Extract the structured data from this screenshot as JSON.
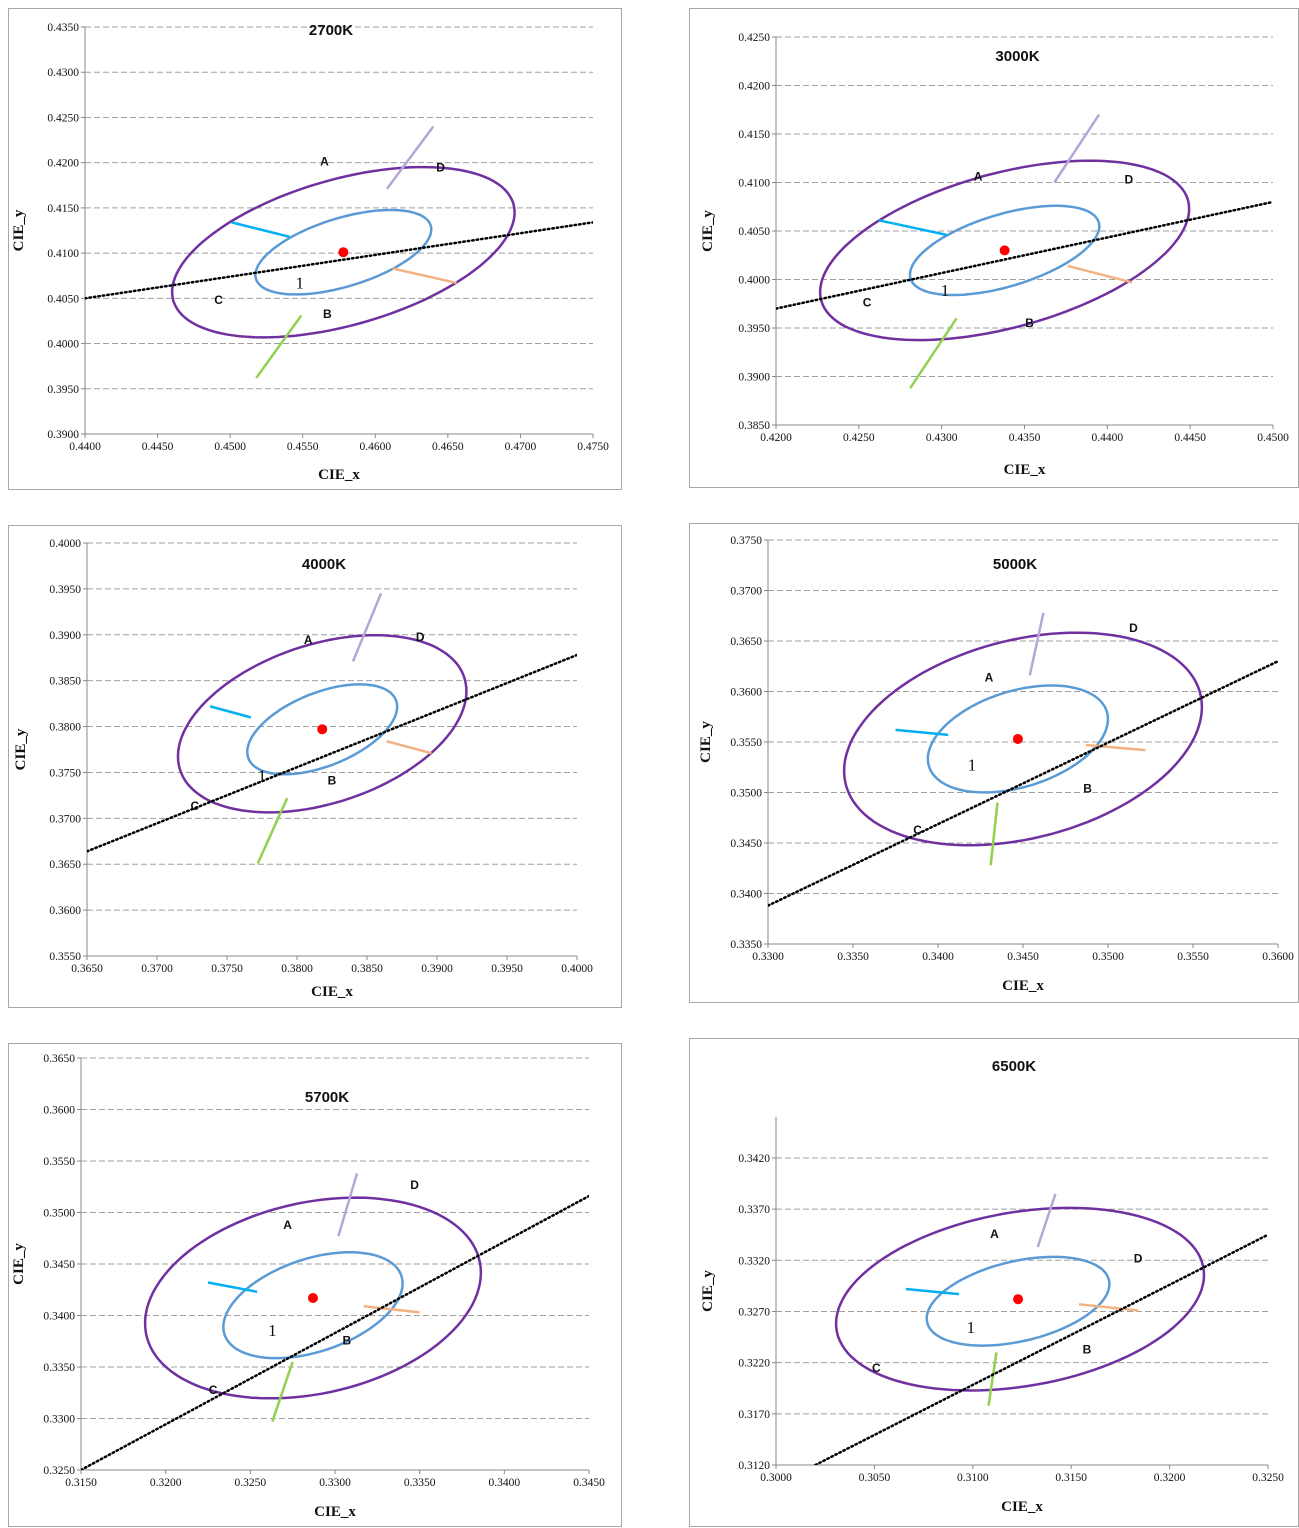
{
  "chart_data": [
    {
      "type": "scatter",
      "title": "2700K",
      "xlabel": "CIE_x",
      "ylabel": "CIE_y",
      "xlim": [
        0.44,
        0.475
      ],
      "ylim": [
        0.39,
        0.435
      ],
      "xticks": [
        "0.4400",
        "0.4450",
        "0.4500",
        "0.4550",
        "0.4600",
        "0.4650",
        "0.4700",
        "0.4750"
      ],
      "yticks": [
        "0.3900",
        "0.3950",
        "0.4000",
        "0.4050",
        "0.4100",
        "0.4150",
        "0.4200",
        "0.4250",
        "0.4300",
        "0.4350"
      ],
      "grid": "horizontal-dashed",
      "center": [
        0.4578,
        0.4101
      ],
      "planckian_line": [
        [
          0.44,
          0.405
        ],
        [
          0.475,
          0.4134
        ]
      ],
      "outer_ellipse": {
        "cx": 0.4578,
        "cy": 0.4101,
        "rx": 0.0131,
        "ry": 0.0075,
        "rotation_deg": 32
      },
      "inner_ellipse": {
        "cx": 0.4578,
        "cy": 0.4101,
        "rx": 0.0068,
        "ry": 0.0035,
        "rotation_deg": 32
      },
      "dividers": [
        {
          "color": "#b4a7d6",
          "from": [
            0.4608,
            0.4171
          ],
          "to": [
            0.464,
            0.424
          ]
        },
        {
          "color": "#f4b183",
          "from": [
            0.4612,
            0.4083
          ],
          "to": [
            0.4656,
            0.4067
          ]
        },
        {
          "color": "#92d050",
          "from": [
            0.4549,
            0.4031
          ],
          "to": [
            0.4518,
            0.3962
          ]
        },
        {
          "color": "#00b0f0",
          "from": [
            0.4541,
            0.4118
          ],
          "to": [
            0.4501,
            0.4134
          ]
        }
      ],
      "region_labels": [
        {
          "text": "A",
          "x": 0.4565,
          "y": 0.4197
        },
        {
          "text": "D",
          "x": 0.4645,
          "y": 0.419
        },
        {
          "text": "C",
          "x": 0.4492,
          "y": 0.4044
        },
        {
          "text": "B",
          "x": 0.4567,
          "y": 0.4028
        },
        {
          "text": "1",
          "x": 0.4548,
          "y": 0.4061,
          "style": "inner"
        }
      ]
    },
    {
      "type": "scatter",
      "title": "3000K",
      "xlabel": "CIE_x",
      "ylabel": "CIE_y",
      "xlim": [
        0.42,
        0.45
      ],
      "ylim": [
        0.385,
        0.425
      ],
      "xticks": [
        "0.4200",
        "0.4250",
        "0.4300",
        "0.4350",
        "0.4400",
        "0.4450",
        "0.4500"
      ],
      "yticks": [
        "0.3850",
        "0.3900",
        "0.3950",
        "0.4000",
        "0.4050",
        "0.4100",
        "0.4150",
        "0.4200",
        "0.4250"
      ],
      "grid": "horizontal-dashed",
      "center": [
        0.4338,
        0.403
      ],
      "planckian_line": [
        [
          0.42,
          0.397
        ],
        [
          0.45,
          0.408
        ]
      ],
      "outer_ellipse": {
        "cx": 0.4338,
        "cy": 0.403,
        "rx": 0.0125,
        "ry": 0.0073,
        "rotation_deg": 34
      },
      "inner_ellipse": {
        "cx": 0.4338,
        "cy": 0.403,
        "rx": 0.0065,
        "ry": 0.0034,
        "rotation_deg": 34
      },
      "dividers": [
        {
          "color": "#b4a7d6",
          "from": [
            0.4368,
            0.41
          ],
          "to": [
            0.4395,
            0.417
          ]
        },
        {
          "color": "#f4b183",
          "from": [
            0.4376,
            0.4014
          ],
          "to": [
            0.4415,
            0.3997
          ]
        },
        {
          "color": "#92d050",
          "from": [
            0.4309,
            0.396
          ],
          "to": [
            0.4281,
            0.3888
          ]
        },
        {
          "color": "#00b0f0",
          "from": [
            0.4303,
            0.4046
          ],
          "to": [
            0.4262,
            0.4061
          ]
        }
      ],
      "region_labels": [
        {
          "text": "A",
          "x": 0.4322,
          "y": 0.4102
        },
        {
          "text": "D",
          "x": 0.4413,
          "y": 0.4099
        },
        {
          "text": "C",
          "x": 0.4255,
          "y": 0.3972
        },
        {
          "text": "B",
          "x": 0.4353,
          "y": 0.3951
        },
        {
          "text": "1",
          "x": 0.4302,
          "y": 0.3983,
          "style": "inner"
        }
      ]
    },
    {
      "type": "scatter",
      "title": "4000K",
      "xlabel": "CIE_x",
      "ylabel": "CIE_y",
      "xlim": [
        0.365,
        0.4
      ],
      "ylim": [
        0.355,
        0.4
      ],
      "xticks": [
        "0.3650",
        "0.3700",
        "0.3750",
        "0.3800",
        "0.3850",
        "0.3900",
        "0.3950",
        "0.4000"
      ],
      "yticks": [
        "0.3550",
        "0.3600",
        "0.3650",
        "0.3700",
        "0.3750",
        "0.3800",
        "0.3850",
        "0.3900",
        "0.3950",
        "0.4000"
      ],
      "grid": "horizontal-dashed",
      "center": [
        0.3818,
        0.3797
      ],
      "planckian_line": [
        [
          0.365,
          0.3664
        ],
        [
          0.4,
          0.3878
        ]
      ],
      "outer_ellipse": {
        "cx": 0.3818,
        "cy": 0.3803,
        "rx": 0.0117,
        "ry": 0.0079,
        "rotation_deg": 40
      },
      "inner_ellipse": {
        "cx": 0.3818,
        "cy": 0.3797,
        "rx": 0.0063,
        "ry": 0.0036,
        "rotation_deg": 40
      },
      "dividers": [
        {
          "color": "#b4a7d6",
          "from": [
            0.384,
            0.3871
          ],
          "to": [
            0.386,
            0.3945
          ]
        },
        {
          "color": "#f4b183",
          "from": [
            0.3864,
            0.3784
          ],
          "to": [
            0.3896,
            0.3771
          ]
        },
        {
          "color": "#92d050",
          "from": [
            0.3793,
            0.3722
          ],
          "to": [
            0.3772,
            0.3651
          ]
        },
        {
          "color": "#00b0f0",
          "from": [
            0.3767,
            0.381
          ],
          "to": [
            0.3738,
            0.3822
          ]
        }
      ],
      "region_labels": [
        {
          "text": "A",
          "x": 0.3808,
          "y": 0.389
        },
        {
          "text": "D",
          "x": 0.3888,
          "y": 0.3893
        },
        {
          "text": "C",
          "x": 0.3727,
          "y": 0.3709
        },
        {
          "text": "B",
          "x": 0.3825,
          "y": 0.3737
        },
        {
          "text": "1",
          "x": 0.3775,
          "y": 0.374,
          "style": "inner"
        }
      ]
    },
    {
      "type": "scatter",
      "title": "5000K",
      "xlabel": "CIE_x",
      "ylabel": "CIE_y",
      "xlim": [
        0.33,
        0.36
      ],
      "ylim": [
        0.335,
        0.375
      ],
      "xticks": [
        "0.3300",
        "0.3350",
        "0.3400",
        "0.3450",
        "0.3500",
        "0.3550",
        "0.3600"
      ],
      "yticks": [
        "0.3350",
        "0.3400",
        "0.3450",
        "0.3500",
        "0.3550",
        "0.3600",
        "0.3650",
        "0.3700",
        "0.3750"
      ],
      "grid": "horizontal-dashed",
      "center": [
        0.3447,
        0.3553
      ],
      "planckian_line": [
        [
          0.33,
          0.3388
        ],
        [
          0.36,
          0.363
        ]
      ],
      "outer_ellipse": {
        "cx": 0.345,
        "cy": 0.3553,
        "rx": 0.012,
        "ry": 0.0088,
        "rotation_deg": 45
      },
      "inner_ellipse": {
        "cx": 0.3447,
        "cy": 0.3553,
        "rx": 0.0062,
        "ry": 0.0042,
        "rotation_deg": 45
      },
      "dividers": [
        {
          "color": "#b4a7d6",
          "from": [
            0.3454,
            0.3616
          ],
          "to": [
            0.3462,
            0.3678
          ]
        },
        {
          "color": "#f4b183",
          "from": [
            0.3487,
            0.3547
          ],
          "to": [
            0.3522,
            0.3542
          ]
        },
        {
          "color": "#92d050",
          "from": [
            0.3435,
            0.349
          ],
          "to": [
            0.3431,
            0.3428
          ]
        },
        {
          "color": "#00b0f0",
          "from": [
            0.3406,
            0.3557
          ],
          "to": [
            0.3375,
            0.3562
          ]
        }
      ],
      "region_labels": [
        {
          "text": "A",
          "x": 0.343,
          "y": 0.361
        },
        {
          "text": "D",
          "x": 0.3515,
          "y": 0.3659
        },
        {
          "text": "C",
          "x": 0.3388,
          "y": 0.3459
        },
        {
          "text": "B",
          "x": 0.3488,
          "y": 0.35
        },
        {
          "text": "1",
          "x": 0.342,
          "y": 0.3522,
          "style": "inner"
        }
      ]
    },
    {
      "type": "scatter",
      "title": "5700K",
      "xlabel": "CIE_x",
      "ylabel": "CIE_y",
      "xlim": [
        0.315,
        0.345
      ],
      "ylim": [
        0.325,
        0.365
      ],
      "xticks": [
        "0.3150",
        "0.3200",
        "0.3250",
        "0.3300",
        "0.3350",
        "0.3400",
        "0.3450"
      ],
      "yticks": [
        "0.3250",
        "0.3300",
        "0.3350",
        "0.3400",
        "0.3450",
        "0.3500",
        "0.3550",
        "0.3600",
        "0.3650"
      ],
      "grid": "horizontal-dashed",
      "center": [
        0.3287,
        0.3417
      ],
      "planckian_line": [
        [
          0.315,
          0.325
        ],
        [
          0.345,
          0.3516
        ]
      ],
      "outer_ellipse": {
        "cx": 0.3287,
        "cy": 0.3417,
        "rx": 0.011,
        "ry": 0.0085,
        "rotation_deg": 43
      },
      "inner_ellipse": {
        "cx": 0.3287,
        "cy": 0.341,
        "rx": 0.0062,
        "ry": 0.004,
        "rotation_deg": 43
      },
      "dividers": [
        {
          "color": "#b4a7d6",
          "from": [
            0.3302,
            0.3477
          ],
          "to": [
            0.3313,
            0.3538
          ]
        },
        {
          "color": "#f4b183",
          "from": [
            0.3317,
            0.3409
          ],
          "to": [
            0.335,
            0.3403
          ]
        },
        {
          "color": "#92d050",
          "from": [
            0.3275,
            0.3355
          ],
          "to": [
            0.3263,
            0.3297
          ]
        },
        {
          "color": "#00b0f0",
          "from": [
            0.3254,
            0.3423
          ],
          "to": [
            0.3225,
            0.3432
          ]
        }
      ],
      "region_labels": [
        {
          "text": "A",
          "x": 0.3272,
          "y": 0.3484
        },
        {
          "text": "D",
          "x": 0.3347,
          "y": 0.3523
        },
        {
          "text": "C",
          "x": 0.3228,
          "y": 0.3324
        },
        {
          "text": "B",
          "x": 0.3307,
          "y": 0.3372
        },
        {
          "text": "1",
          "x": 0.3263,
          "y": 0.338,
          "style": "inner"
        }
      ]
    },
    {
      "type": "scatter",
      "title": "6500K",
      "xlabel": "CIE_x",
      "ylabel": "CIE_y",
      "xlim": [
        0.3,
        0.325
      ],
      "ylim": [
        0.312,
        0.346
      ],
      "xticks": [
        "0.3000",
        "0.3050",
        "0.3100",
        "0.3150",
        "0.3200",
        "0.3250"
      ],
      "yticks": [
        "0.3120",
        "0.3170",
        "0.3220",
        "0.3270",
        "0.3320",
        "0.3370",
        "0.3420"
      ],
      "grid": "horizontal-dashed",
      "center": [
        0.3123,
        0.3282
      ],
      "planckian_line": [
        [
          0.302,
          0.312
        ],
        [
          0.325,
          0.3345
        ]
      ],
      "outer_ellipse": {
        "cx": 0.3124,
        "cy": 0.3282,
        "rx": 0.0103,
        "ry": 0.0078,
        "rotation_deg": 40
      },
      "inner_ellipse": {
        "cx": 0.3123,
        "cy": 0.328,
        "rx": 0.0053,
        "ry": 0.0035,
        "rotation_deg": 40
      },
      "dividers": [
        {
          "color": "#b4a7d6",
          "from": [
            0.3133,
            0.3333
          ],
          "to": [
            0.3142,
            0.3385
          ]
        },
        {
          "color": "#f4b183",
          "from": [
            0.3154,
            0.3277
          ],
          "to": [
            0.3184,
            0.3271
          ]
        },
        {
          "color": "#92d050",
          "from": [
            0.3112,
            0.323
          ],
          "to": [
            0.3108,
            0.3178
          ]
        },
        {
          "color": "#00b0f0",
          "from": [
            0.3093,
            0.3287
          ],
          "to": [
            0.3066,
            0.3292
          ]
        }
      ],
      "region_labels": [
        {
          "text": "A",
          "x": 0.3111,
          "y": 0.3342
        },
        {
          "text": "D",
          "x": 0.3184,
          "y": 0.3318
        },
        {
          "text": "C",
          "x": 0.3051,
          "y": 0.3211
        },
        {
          "text": "B",
          "x": 0.3158,
          "y": 0.3229
        },
        {
          "text": "1",
          "x": 0.3099,
          "y": 0.3249,
          "style": "inner"
        }
      ]
    }
  ],
  "colors": {
    "outer_ellipse": "#7030a0",
    "inner_ellipse": "#5b9bd5",
    "center_point": "#ff0000",
    "planckian_line": "#000000",
    "gridline": "#a0a0a0"
  }
}
